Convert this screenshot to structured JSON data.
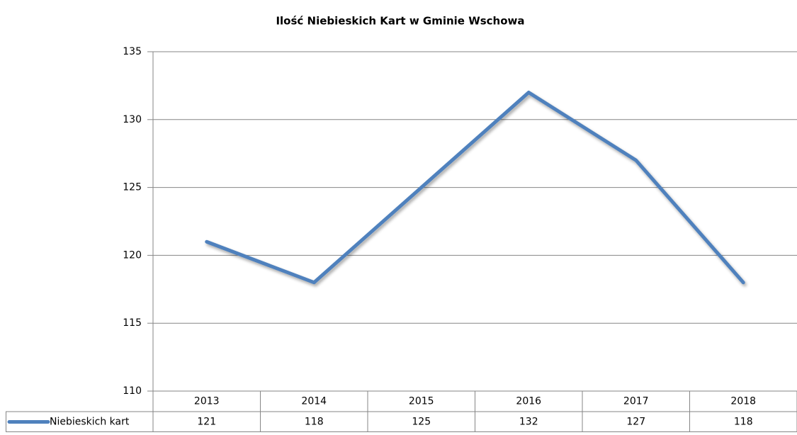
{
  "chart_data": {
    "type": "line",
    "title": "Ilość Niebieskich Kart w Gminie Wschowa",
    "categories": [
      "2013",
      "2014",
      "2015",
      "2016",
      "2017",
      "2018"
    ],
    "series": [
      {
        "name": "Niebieskich kart",
        "color": "#4f81bd",
        "values": [
          121,
          118,
          125,
          132,
          127,
          118
        ]
      }
    ],
    "ylim": [
      110,
      135
    ],
    "yticks": [
      110,
      115,
      120,
      125,
      130,
      135
    ],
    "grid": true,
    "data_table": true
  }
}
